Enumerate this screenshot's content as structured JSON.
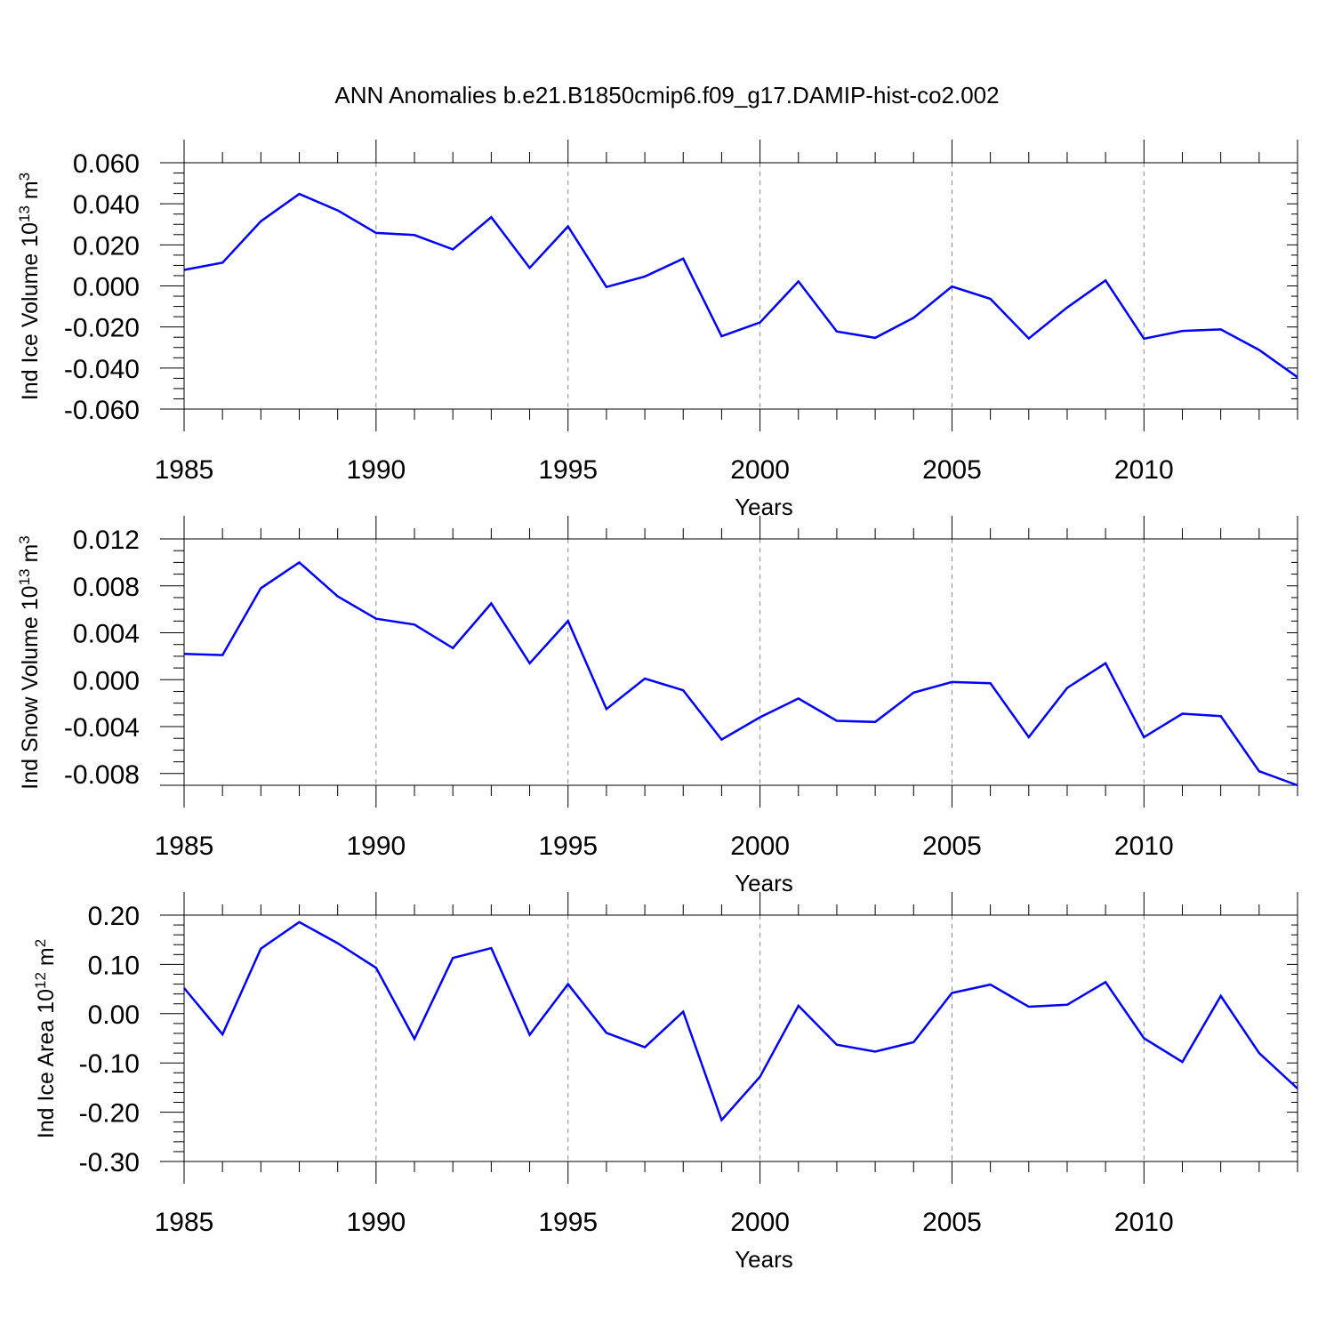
{
  "title": "ANN Anomalies b.e21.B1850cmip6.f09_g17.DAMIP-hist-co2.002",
  "chart_data": [
    {
      "type": "line",
      "title": "ANN Anomalies b.e21.B1850cmip6.f09_g17.DAMIP-hist-co2.002",
      "xlabel": "Years",
      "ylabel": "Ind Ice Volume 10",
      "ylabel_exp": "13",
      "ylabel_unit": "m",
      "ylabel_unit_exp": "3",
      "xlim": [
        1985,
        2014
      ],
      "ylim": [
        -0.06,
        0.06
      ],
      "yticks": [
        0.06,
        0.04,
        0.02,
        0.0,
        -0.02,
        -0.04,
        -0.06
      ],
      "yticklabels": [
        "0.060",
        "0.040",
        "0.020",
        "0.000",
        "-0.020",
        "-0.040",
        "-0.060"
      ],
      "ytick_minor_step": 0.005,
      "xticks": [
        1985,
        1990,
        1995,
        2000,
        2005,
        2010
      ],
      "xticklabels": [
        "1985",
        "1990",
        "1995",
        "2000",
        "2005",
        "2010"
      ],
      "grid": "vertical-dashed",
      "series": [
        {
          "name": "Ind Ice Volume",
          "color": "#0000ff",
          "x": [
            1985,
            1986,
            1987,
            1988,
            1989,
            1990,
            1991,
            1992,
            1993,
            1994,
            1995,
            1996,
            1997,
            1998,
            1999,
            2000,
            2001,
            2002,
            2003,
            2004,
            2005,
            2006,
            2007,
            2008,
            2009,
            2010,
            2011,
            2012,
            2013,
            2014
          ],
          "values": [
            0.0078,
            0.0113,
            0.0315,
            0.0448,
            0.0368,
            0.0258,
            0.0248,
            0.0178,
            0.0335,
            0.0088,
            0.029,
            -0.0005,
            0.0046,
            0.0133,
            -0.0245,
            -0.0178,
            0.0022,
            -0.0222,
            -0.0253,
            -0.0155,
            -0.0003,
            -0.0063,
            -0.0256,
            -0.0105,
            0.0027,
            -0.0257,
            -0.0219,
            -0.0212,
            -0.0312,
            -0.0445
          ]
        }
      ]
    },
    {
      "type": "line",
      "xlabel": "Years",
      "ylabel": "Ind Snow Volume 10",
      "ylabel_exp": "13",
      "ylabel_unit": "m",
      "ylabel_unit_exp": "3",
      "xlim": [
        1985,
        2014
      ],
      "ylim": [
        -0.009,
        0.012
      ],
      "yticks": [
        0.012,
        0.008,
        0.004,
        0.0,
        -0.004,
        -0.008
      ],
      "yticklabels": [
        "0.012",
        "0.008",
        "0.004",
        "0.000",
        "-0.004",
        "-0.008"
      ],
      "ytick_minor_step": 0.001,
      "xticks": [
        1985,
        1990,
        1995,
        2000,
        2005,
        2010
      ],
      "xticklabels": [
        "1985",
        "1990",
        "1995",
        "2000",
        "2005",
        "2010"
      ],
      "grid": "vertical-dashed",
      "series": [
        {
          "name": "Ind Snow Volume",
          "color": "#0000ff",
          "x": [
            1985,
            1986,
            1987,
            1988,
            1989,
            1990,
            1991,
            1992,
            1993,
            1994,
            1995,
            1996,
            1997,
            1998,
            1999,
            2000,
            2001,
            2002,
            2003,
            2004,
            2005,
            2006,
            2007,
            2008,
            2009,
            2010,
            2011,
            2012,
            2013,
            2014
          ],
          "values": [
            0.0022,
            0.0021,
            0.0078,
            0.01,
            0.0071,
            0.0052,
            0.0047,
            0.0027,
            0.0065,
            0.0014,
            0.005,
            -0.0025,
            0.0001,
            -0.0009,
            -0.0051,
            -0.0032,
            -0.0016,
            -0.0035,
            -0.0036,
            -0.0011,
            -0.0002,
            -0.0003,
            -0.0049,
            -0.0007,
            0.0014,
            -0.0049,
            -0.0029,
            -0.0031,
            -0.0078,
            -0.009
          ]
        }
      ]
    },
    {
      "type": "line",
      "xlabel": "Years",
      "ylabel": "Ind Ice Area 10",
      "ylabel_exp": "12",
      "ylabel_unit": "m",
      "ylabel_unit_exp": "2",
      "xlim": [
        1985,
        2014
      ],
      "ylim": [
        -0.3,
        0.2
      ],
      "yticks": [
        0.2,
        0.1,
        0.0,
        -0.1,
        -0.2,
        -0.3
      ],
      "yticklabels": [
        "0.20",
        "0.10",
        "0.00",
        "-0.10",
        "-0.20",
        "-0.30"
      ],
      "ytick_minor_step": 0.02,
      "xticks": [
        1985,
        1990,
        1995,
        2000,
        2005,
        2010
      ],
      "xticklabels": [
        "1985",
        "1990",
        "1995",
        "2000",
        "2005",
        "2010"
      ],
      "grid": "vertical-dashed",
      "series": [
        {
          "name": "Ind Ice Area",
          "color": "#0000ff",
          "x": [
            1985,
            1986,
            1987,
            1988,
            1989,
            1990,
            1991,
            1992,
            1993,
            1994,
            1995,
            1996,
            1997,
            1998,
            1999,
            2000,
            2001,
            2002,
            2003,
            2004,
            2005,
            2006,
            2007,
            2008,
            2009,
            2010,
            2011,
            2012,
            2013,
            2014
          ],
          "values": [
            0.052,
            -0.042,
            0.132,
            0.186,
            0.143,
            0.093,
            -0.051,
            0.113,
            0.133,
            -0.043,
            0.06,
            -0.039,
            -0.068,
            0.004,
            -0.216,
            -0.128,
            0.016,
            -0.063,
            -0.077,
            -0.058,
            0.042,
            0.059,
            0.014,
            0.018,
            0.064,
            -0.05,
            -0.098,
            0.036,
            -0.08,
            -0.152
          ]
        }
      ]
    }
  ]
}
